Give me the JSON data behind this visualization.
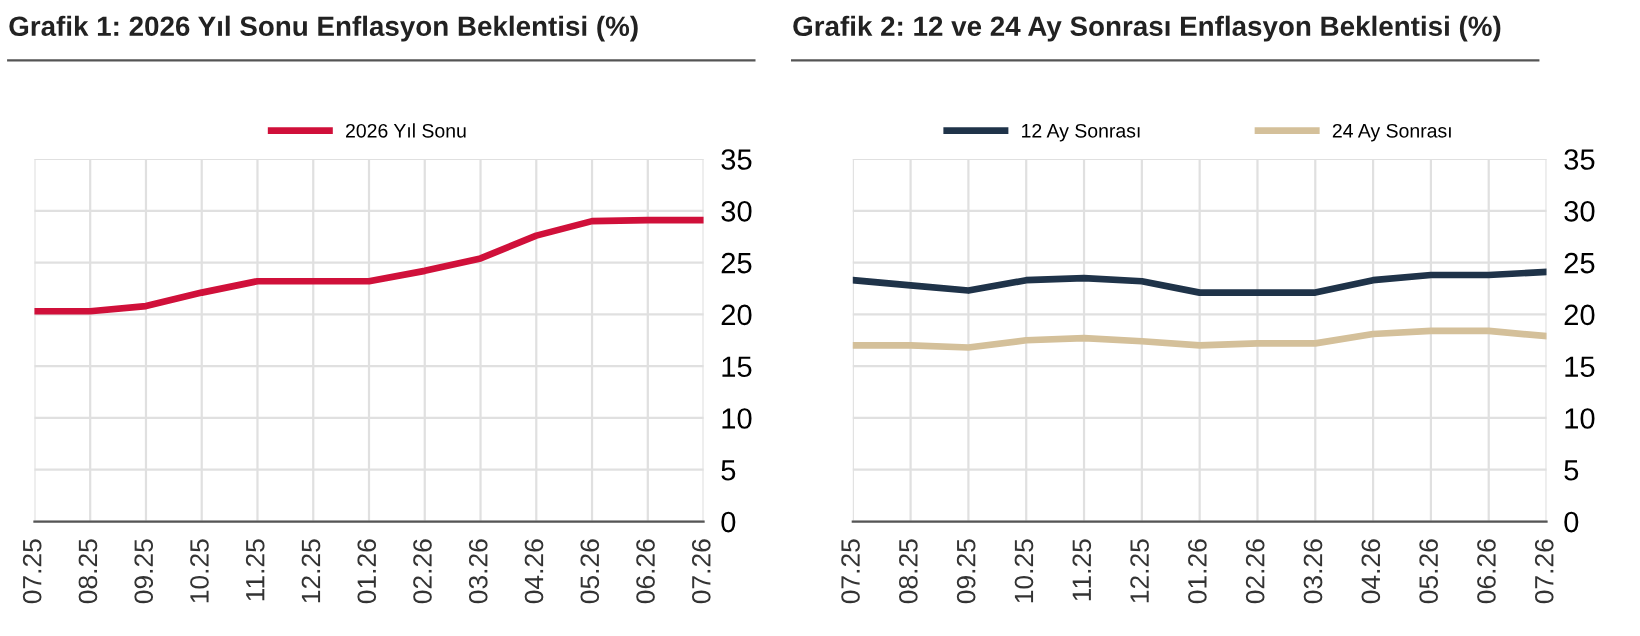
{
  "chart_data": [
    {
      "type": "line",
      "title": "Grafik 1: 2026 Yıl Sonu Enflasyon Beklentisi (%)",
      "categories": [
        "07.25",
        "08.25",
        "09.25",
        "10.25",
        "11.25",
        "12.25",
        "01.26",
        "02.26",
        "03.26",
        "04.26",
        "05.26",
        "06.26",
        "07.26"
      ],
      "series": [
        {
          "name": "2026 Yıl Sonu",
          "color": "#d0103a",
          "values": [
            20.3,
            20.3,
            20.8,
            22.1,
            23.2,
            23.2,
            23.2,
            24.2,
            25.4,
            27.6,
            29.0,
            29.1,
            29.1
          ]
        }
      ],
      "ylim": [
        0,
        35
      ],
      "yticks": [
        0,
        5,
        10,
        15,
        20,
        25,
        30,
        35
      ],
      "grid": true,
      "legend": "top",
      "marker": "none",
      "line_style": "solid"
    },
    {
      "type": "line",
      "title": "Grafik 2: 12 ve 24 Ay Sonrası Enflasyon Beklentisi (%)",
      "categories": [
        "07.25",
        "08.25",
        "09.25",
        "10.25",
        "11.25",
        "12.25",
        "01.26",
        "02.26",
        "03.26",
        "04.26",
        "05.26",
        "06.26",
        "07.26"
      ],
      "series": [
        {
          "name": "12 Ay Sonrası",
          "color": "#1f3349",
          "values": [
            23.3,
            22.8,
            22.3,
            23.3,
            23.5,
            23.2,
            22.1,
            22.1,
            22.1,
            23.3,
            23.8,
            23.8,
            24.1
          ]
        },
        {
          "name": "24 Ay Sonrası",
          "color": "#d4c09a",
          "values": [
            17.0,
            17.0,
            16.8,
            17.5,
            17.7,
            17.4,
            17.0,
            17.2,
            17.2,
            18.1,
            18.4,
            18.4,
            17.9
          ]
        }
      ],
      "ylim": [
        0,
        35
      ],
      "yticks": [
        0,
        5,
        10,
        15,
        20,
        25,
        30,
        35
      ],
      "grid": true,
      "legend": "top",
      "marker": "none",
      "line_style": "solid"
    }
  ]
}
